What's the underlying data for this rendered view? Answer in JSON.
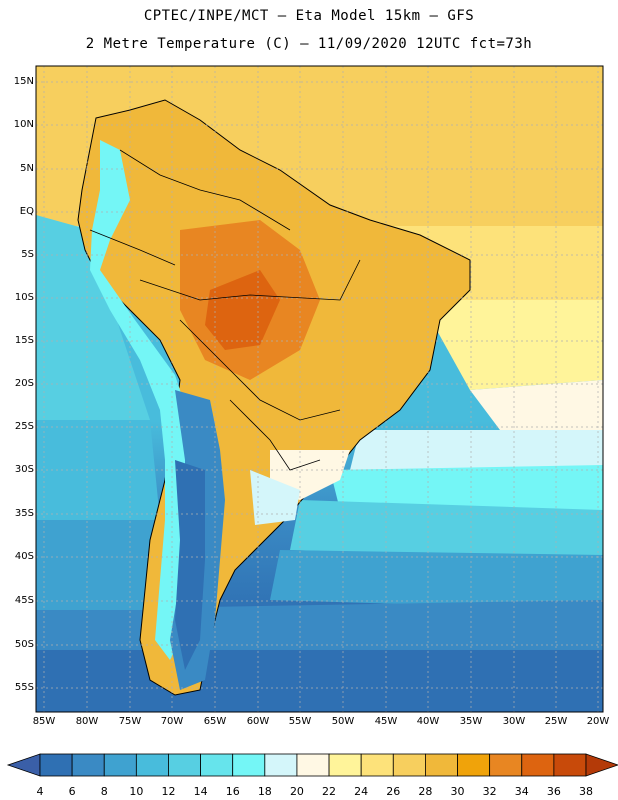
{
  "header": {
    "line1": "CPTEC/INPE/MCT –  Eta Model 15km – GFS",
    "line2": "2 Metre Temperature (C) – 11/09/2020 12UTC fct=73h"
  },
  "axes": {
    "lat_labels": [
      "15N",
      "10N",
      "5N",
      "EQ",
      "5S",
      "10S",
      "15S",
      "20S",
      "25S",
      "30S",
      "35S",
      "40S",
      "45S",
      "50S",
      "55S"
    ],
    "lon_labels": [
      "85W",
      "80W",
      "75W",
      "70W",
      "65W",
      "60W",
      "55W",
      "50W",
      "45W",
      "40W",
      "35W",
      "30W",
      "25W",
      "20W"
    ]
  },
  "colorbar": {
    "labels": [
      "4",
      "6",
      "8",
      "10",
      "12",
      "14",
      "16",
      "18",
      "20",
      "22",
      "24",
      "26",
      "28",
      "30",
      "32",
      "34",
      "36",
      "38"
    ],
    "colors": [
      "#3a5fa8",
      "#2f70b3",
      "#3a8ac4",
      "#3fa2d0",
      "#48bcdc",
      "#57cfe2",
      "#66e4ec",
      "#74f6f6",
      "#d4f6fa",
      "#fff8e4",
      "#fff49a",
      "#fde27a",
      "#f7cf5e",
      "#f0b83a",
      "#f0a30a",
      "#e88622",
      "#dd6410",
      "#c84a0a",
      "#b43a08"
    ]
  }
}
